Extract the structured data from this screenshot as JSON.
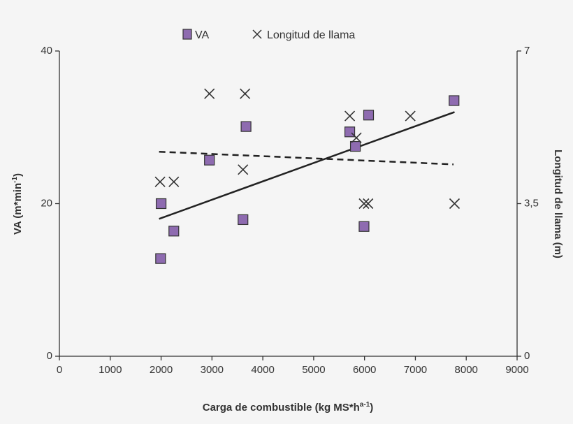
{
  "chart_data": {
    "type": "scatter",
    "xlabel": "Carga de combustible (kg MS*h",
    "xlabel_sup": "a-1",
    "xlabel_end": ")",
    "ylabel": "VA (m*min",
    "ylabel_sup": "-1",
    "ylabel_end": ")",
    "y2label": "Longitud de llama (m)",
    "xlim": [
      0,
      9000
    ],
    "ylim": [
      0,
      40
    ],
    "y2lim": [
      0,
      7
    ],
    "x_ticks": [
      "0",
      "1000",
      "2000",
      "3000",
      "4000",
      "5000",
      "6000",
      "7000",
      "8000",
      "9000"
    ],
    "y_ticks": [
      "0",
      "20",
      "40"
    ],
    "y2_ticks": [
      "0",
      "3,5",
      "7"
    ],
    "grid": false,
    "legend_placement": "top-center",
    "series": [
      {
        "name": "VA",
        "axis": "left",
        "marker": "square",
        "color": "#8e6bb0",
        "points": [
          [
            1990,
            12.8
          ],
          [
            2000,
            20.0
          ],
          [
            2250,
            16.4
          ],
          [
            2950,
            25.7
          ],
          [
            3610,
            17.9
          ],
          [
            3670,
            30.1
          ],
          [
            5710,
            29.4
          ],
          [
            5820,
            27.5
          ],
          [
            6080,
            31.6
          ],
          [
            5990,
            17.0
          ],
          [
            7760,
            33.5
          ]
        ],
        "trend": {
          "style": "solid",
          "from": [
            1960,
            18.0
          ],
          "to": [
            7770,
            32.0
          ]
        }
      },
      {
        "name": "Longitud de llama",
        "axis": "right",
        "marker": "x",
        "color": "#333333",
        "points": [
          [
            1980,
            4.0
          ],
          [
            2250,
            4.0
          ],
          [
            2950,
            6.02
          ],
          [
            3610,
            4.28
          ],
          [
            3650,
            6.02
          ],
          [
            5710,
            5.51
          ],
          [
            5840,
            5.01
          ],
          [
            5990,
            3.5
          ],
          [
            6070,
            3.5
          ],
          [
            6900,
            5.51
          ],
          [
            7770,
            3.5
          ]
        ],
        "trend": {
          "style": "dashed",
          "from": [
            1960,
            4.69
          ],
          "to": [
            7750,
            4.4
          ]
        }
      }
    ]
  }
}
